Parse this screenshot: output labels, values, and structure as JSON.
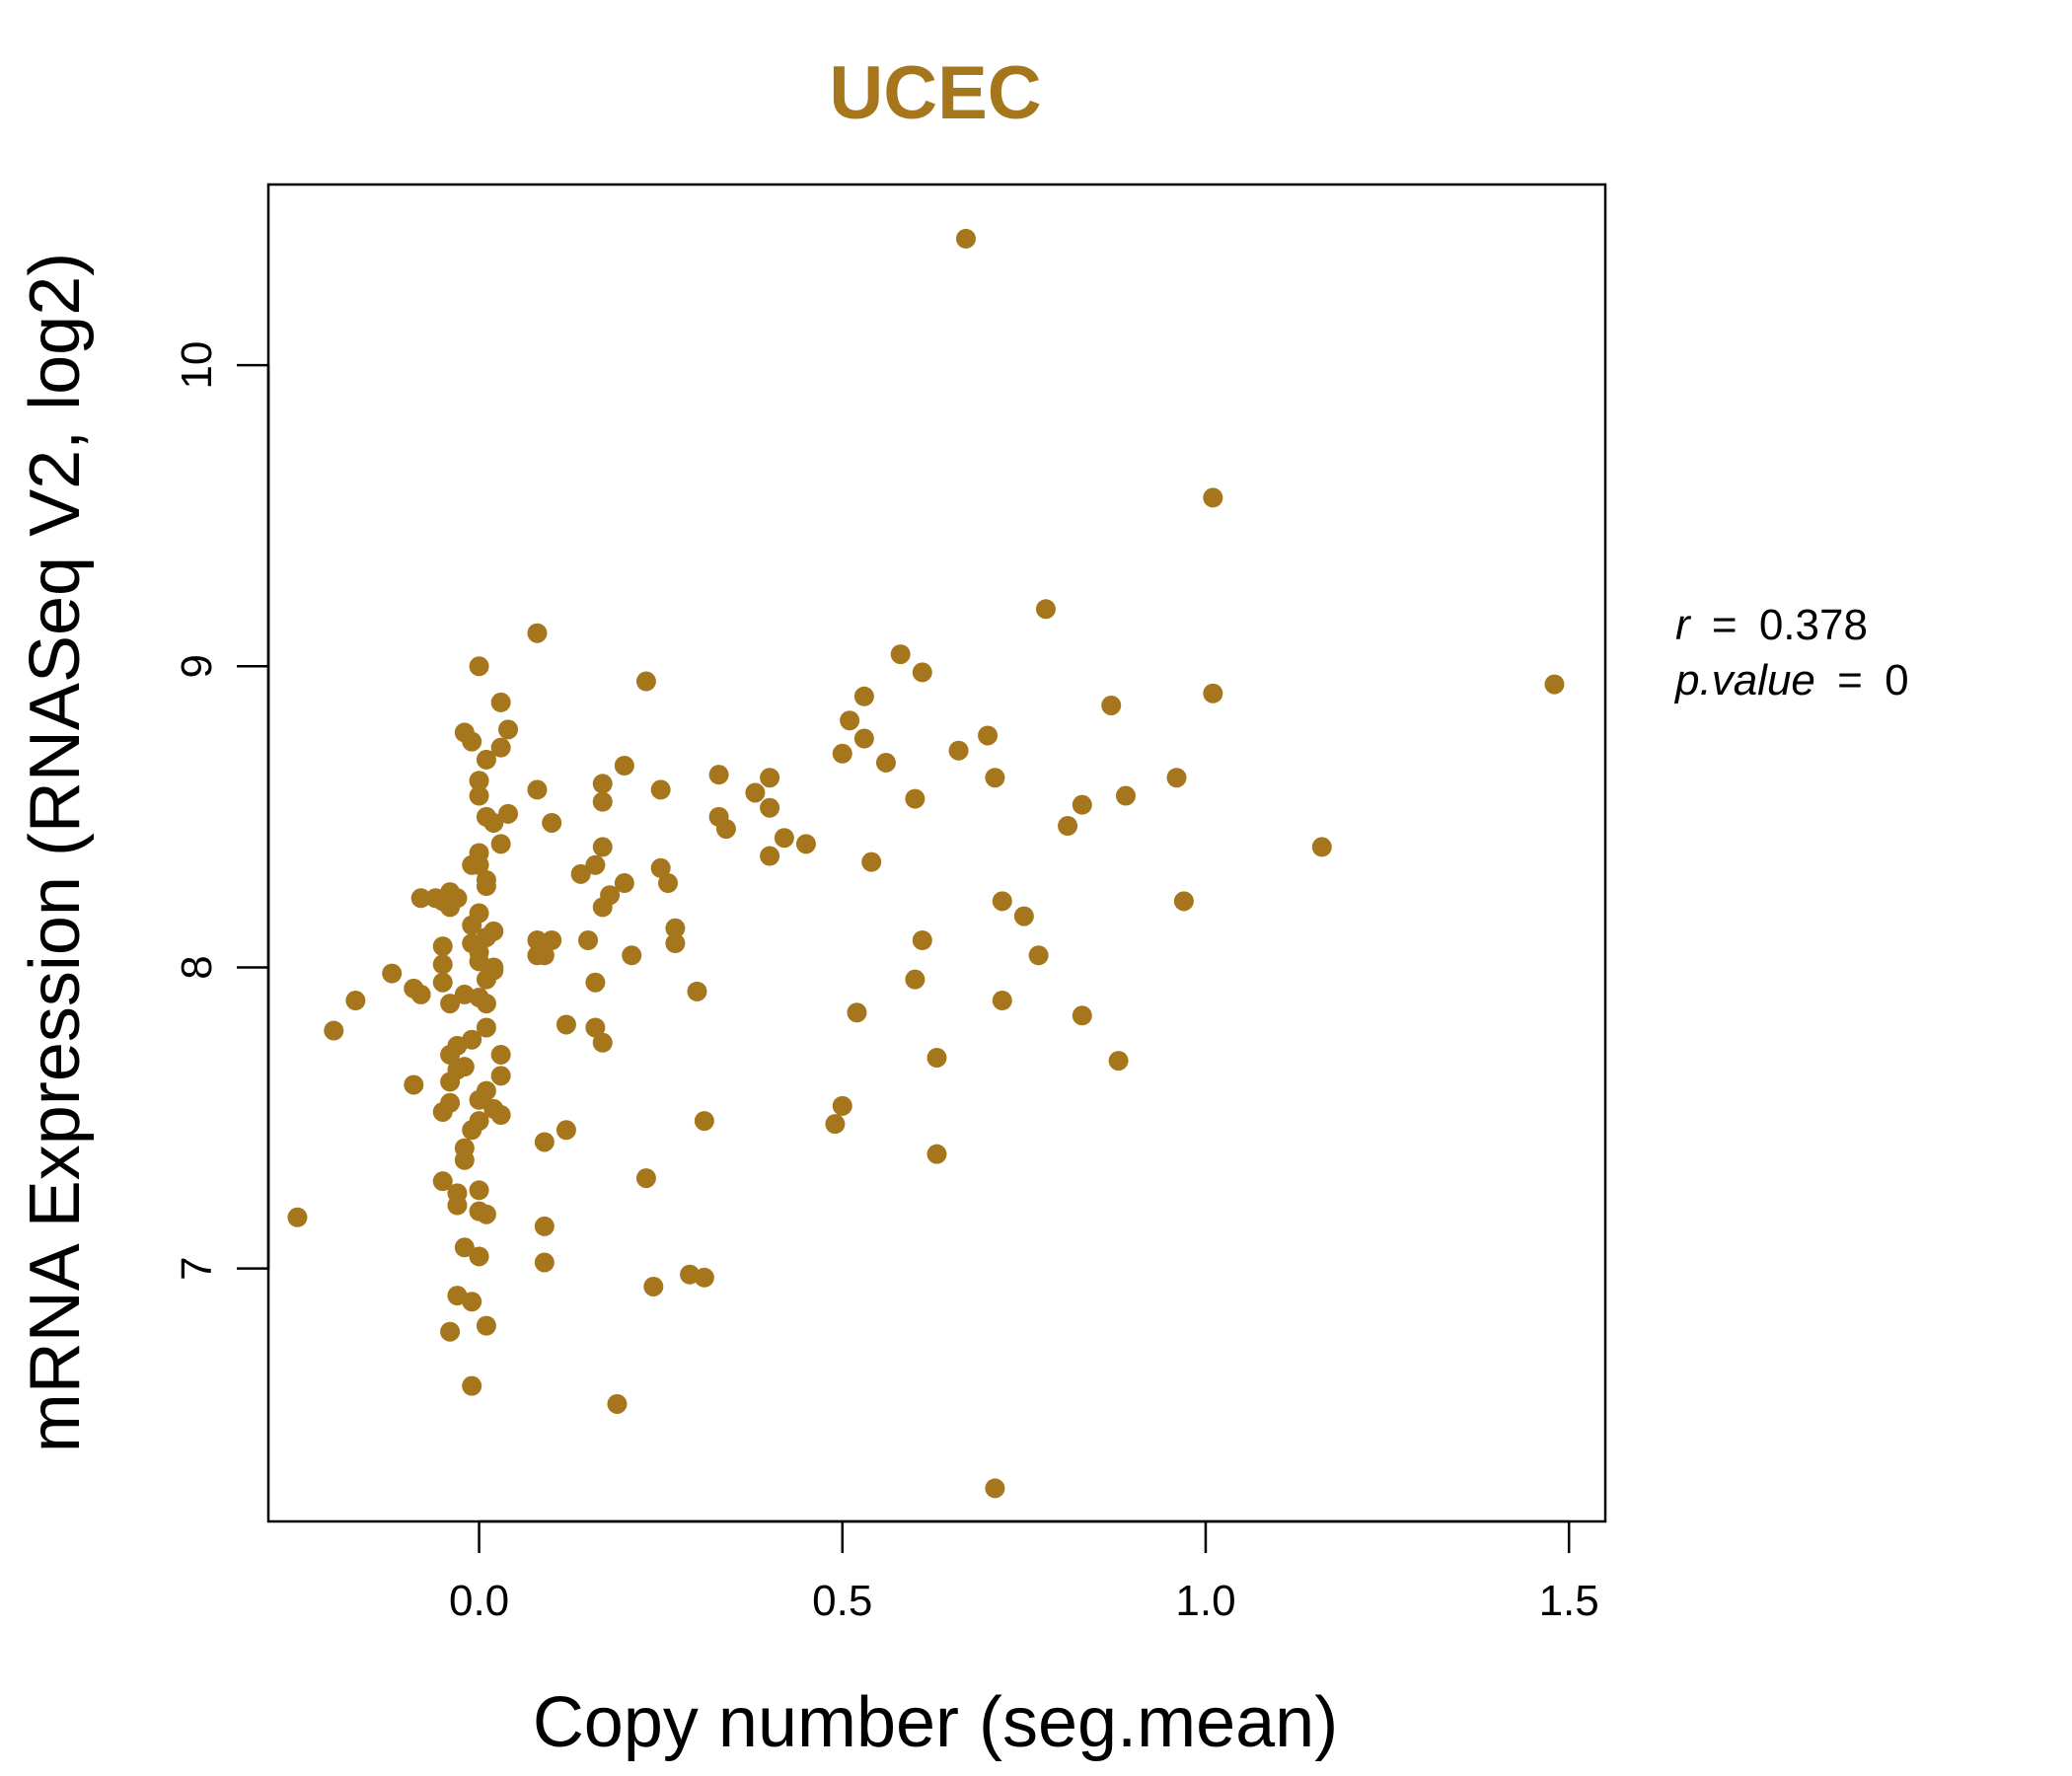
{
  "chart_data": {
    "type": "scatter",
    "title": "UCEC",
    "xlabel": "Copy number (seg.mean)",
    "ylabel": "mRNA Expression (RNASeq V2, log2)",
    "xlim": [
      -0.29,
      1.55
    ],
    "ylim": [
      6.16,
      10.6
    ],
    "x_ticks": [
      {
        "value": 0.0,
        "label": "0.0"
      },
      {
        "value": 0.5,
        "label": "0.5"
      },
      {
        "value": 1.0,
        "label": "1.0"
      },
      {
        "value": 1.5,
        "label": "1.5"
      }
    ],
    "y_ticks": [
      {
        "value": 7,
        "label": "7"
      },
      {
        "value": 8,
        "label": "8"
      },
      {
        "value": 9,
        "label": "9"
      },
      {
        "value": 10,
        "label": "10"
      }
    ],
    "grid": false,
    "color": "#A6761D",
    "stats": {
      "r_label": "r",
      "r_value": "0.378",
      "p_label": "p.value",
      "p_value": "0",
      "eq": "="
    },
    "points": [
      [
        0.67,
        10.42
      ],
      [
        1.01,
        9.56
      ],
      [
        0.78,
        9.19
      ],
      [
        1.48,
        8.94
      ],
      [
        1.01,
        8.91
      ],
      [
        0.96,
        8.63
      ],
      [
        1.16,
        8.4
      ],
      [
        0.87,
        8.87
      ],
      [
        0.89,
        8.57
      ],
      [
        0.83,
        8.54
      ],
      [
        0.81,
        8.47
      ],
      [
        0.97,
        8.22
      ],
      [
        0.83,
        7.84
      ],
      [
        0.88,
        7.69
      ],
      [
        0.58,
        9.04
      ],
      [
        0.61,
        8.98
      ],
      [
        0.53,
        8.9
      ],
      [
        0.51,
        8.82
      ],
      [
        0.53,
        8.76
      ],
      [
        0.5,
        8.71
      ],
      [
        0.56,
        8.68
      ],
      [
        0.66,
        8.72
      ],
      [
        0.7,
        8.77
      ],
      [
        0.71,
        8.63
      ],
      [
        0.6,
        8.56
      ],
      [
        0.54,
        8.35
      ],
      [
        0.72,
        8.22
      ],
      [
        0.75,
        8.17
      ],
      [
        0.61,
        8.09
      ],
      [
        0.77,
        8.04
      ],
      [
        0.6,
        7.96
      ],
      [
        0.72,
        7.89
      ],
      [
        0.52,
        7.85
      ],
      [
        0.63,
        7.7
      ],
      [
        0.5,
        7.54
      ],
      [
        0.49,
        7.48
      ],
      [
        0.63,
        7.38
      ],
      [
        0.71,
        6.27
      ],
      [
        0.33,
        8.64
      ],
      [
        0.4,
        8.63
      ],
      [
        0.38,
        8.58
      ],
      [
        0.4,
        8.53
      ],
      [
        0.33,
        8.5
      ],
      [
        0.34,
        8.46
      ],
      [
        0.42,
        8.43
      ],
      [
        0.45,
        8.41
      ],
      [
        0.4,
        8.37
      ],
      [
        0.23,
        8.95
      ],
      [
        0.2,
        8.67
      ],
      [
        0.25,
        8.59
      ],
      [
        0.17,
        8.61
      ],
      [
        0.17,
        8.55
      ],
      [
        0.17,
        8.4
      ],
      [
        0.25,
        8.33
      ],
      [
        0.26,
        8.28
      ],
      [
        0.2,
        8.28
      ],
      [
        0.18,
        8.24
      ],
      [
        0.17,
        8.2
      ],
      [
        0.27,
        8.13
      ],
      [
        0.27,
        8.08
      ],
      [
        0.21,
        8.04
      ],
      [
        0.15,
        8.09
      ],
      [
        0.16,
        8.34
      ],
      [
        0.14,
        8.31
      ],
      [
        0.16,
        7.95
      ],
      [
        0.3,
        7.92
      ],
      [
        0.16,
        7.8
      ],
      [
        0.17,
        7.75
      ],
      [
        0.31,
        7.49
      ],
      [
        0.23,
        7.3
      ],
      [
        0.29,
        6.98
      ],
      [
        0.31,
        6.97
      ],
      [
        0.24,
        6.94
      ],
      [
        0.19,
        6.55
      ],
      [
        0.08,
        9.11
      ],
      [
        0.08,
        8.59
      ],
      [
        0.1,
        8.48
      ],
      [
        0.08,
        8.09
      ],
      [
        0.1,
        8.09
      ],
      [
        0.08,
        8.04
      ],
      [
        0.09,
        8.04
      ],
      [
        0.12,
        7.81
      ],
      [
        0.12,
        7.46
      ],
      [
        0.09,
        7.42
      ],
      [
        0.09,
        7.14
      ],
      [
        0.09,
        7.02
      ],
      [
        0.0,
        9.0
      ],
      [
        0.03,
        8.88
      ],
      [
        0.04,
        8.79
      ],
      [
        -0.02,
        8.78
      ],
      [
        -0.01,
        8.75
      ],
      [
        0.03,
        8.73
      ],
      [
        0.01,
        8.69
      ],
      [
        0.0,
        8.62
      ],
      [
        0.0,
        8.57
      ],
      [
        0.04,
        8.51
      ],
      [
        0.01,
        8.5
      ],
      [
        0.02,
        8.48
      ],
      [
        0.03,
        8.41
      ],
      [
        0.0,
        8.38
      ],
      [
        0.0,
        8.34
      ],
      [
        -0.01,
        8.34
      ],
      [
        0.01,
        8.29
      ],
      [
        0.01,
        8.27
      ],
      [
        -0.08,
        8.23
      ],
      [
        -0.06,
        8.23
      ],
      [
        -0.05,
        8.22
      ],
      [
        -0.04,
        8.2
      ],
      [
        -0.03,
        8.23
      ],
      [
        -0.04,
        8.25
      ],
      [
        0.0,
        8.18
      ],
      [
        -0.01,
        8.14
      ],
      [
        0.02,
        8.12
      ],
      [
        0.01,
        8.1
      ],
      [
        -0.01,
        8.08
      ],
      [
        0.0,
        8.05
      ],
      [
        -0.05,
        8.07
      ],
      [
        0.0,
        8.02
      ],
      [
        0.02,
        8.0
      ],
      [
        -0.05,
        8.01
      ],
      [
        0.02,
        7.99
      ],
      [
        -0.12,
        7.98
      ],
      [
        0.01,
        7.96
      ],
      [
        -0.05,
        7.95
      ],
      [
        -0.09,
        7.93
      ],
      [
        -0.08,
        7.91
      ],
      [
        -0.02,
        7.91
      ],
      [
        0.0,
        7.9
      ],
      [
        0.01,
        7.88
      ],
      [
        -0.04,
        7.88
      ],
      [
        -0.17,
        7.89
      ],
      [
        -0.2,
        7.79
      ],
      [
        0.01,
        7.8
      ],
      [
        -0.01,
        7.76
      ],
      [
        -0.03,
        7.74
      ],
      [
        -0.04,
        7.71
      ],
      [
        0.03,
        7.71
      ],
      [
        -0.02,
        7.67
      ],
      [
        -0.03,
        7.66
      ],
      [
        0.03,
        7.64
      ],
      [
        -0.04,
        7.62
      ],
      [
        -0.09,
        7.61
      ],
      [
        0.01,
        7.59
      ],
      [
        0.0,
        7.56
      ],
      [
        -0.04,
        7.55
      ],
      [
        0.02,
        7.53
      ],
      [
        -0.05,
        7.52
      ],
      [
        0.03,
        7.51
      ],
      [
        0.0,
        7.49
      ],
      [
        -0.01,
        7.46
      ],
      [
        -0.02,
        7.4
      ],
      [
        -0.02,
        7.36
      ],
      [
        -0.05,
        7.29
      ],
      [
        -0.03,
        7.25
      ],
      [
        0.0,
        7.26
      ],
      [
        -0.03,
        7.21
      ],
      [
        0.0,
        7.19
      ],
      [
        0.01,
        7.18
      ],
      [
        -0.25,
        7.17
      ],
      [
        -0.02,
        7.07
      ],
      [
        0.0,
        7.04
      ],
      [
        -0.03,
        6.91
      ],
      [
        -0.01,
        6.89
      ],
      [
        0.01,
        6.81
      ],
      [
        -0.04,
        6.79
      ],
      [
        -0.01,
        6.61
      ]
    ]
  }
}
